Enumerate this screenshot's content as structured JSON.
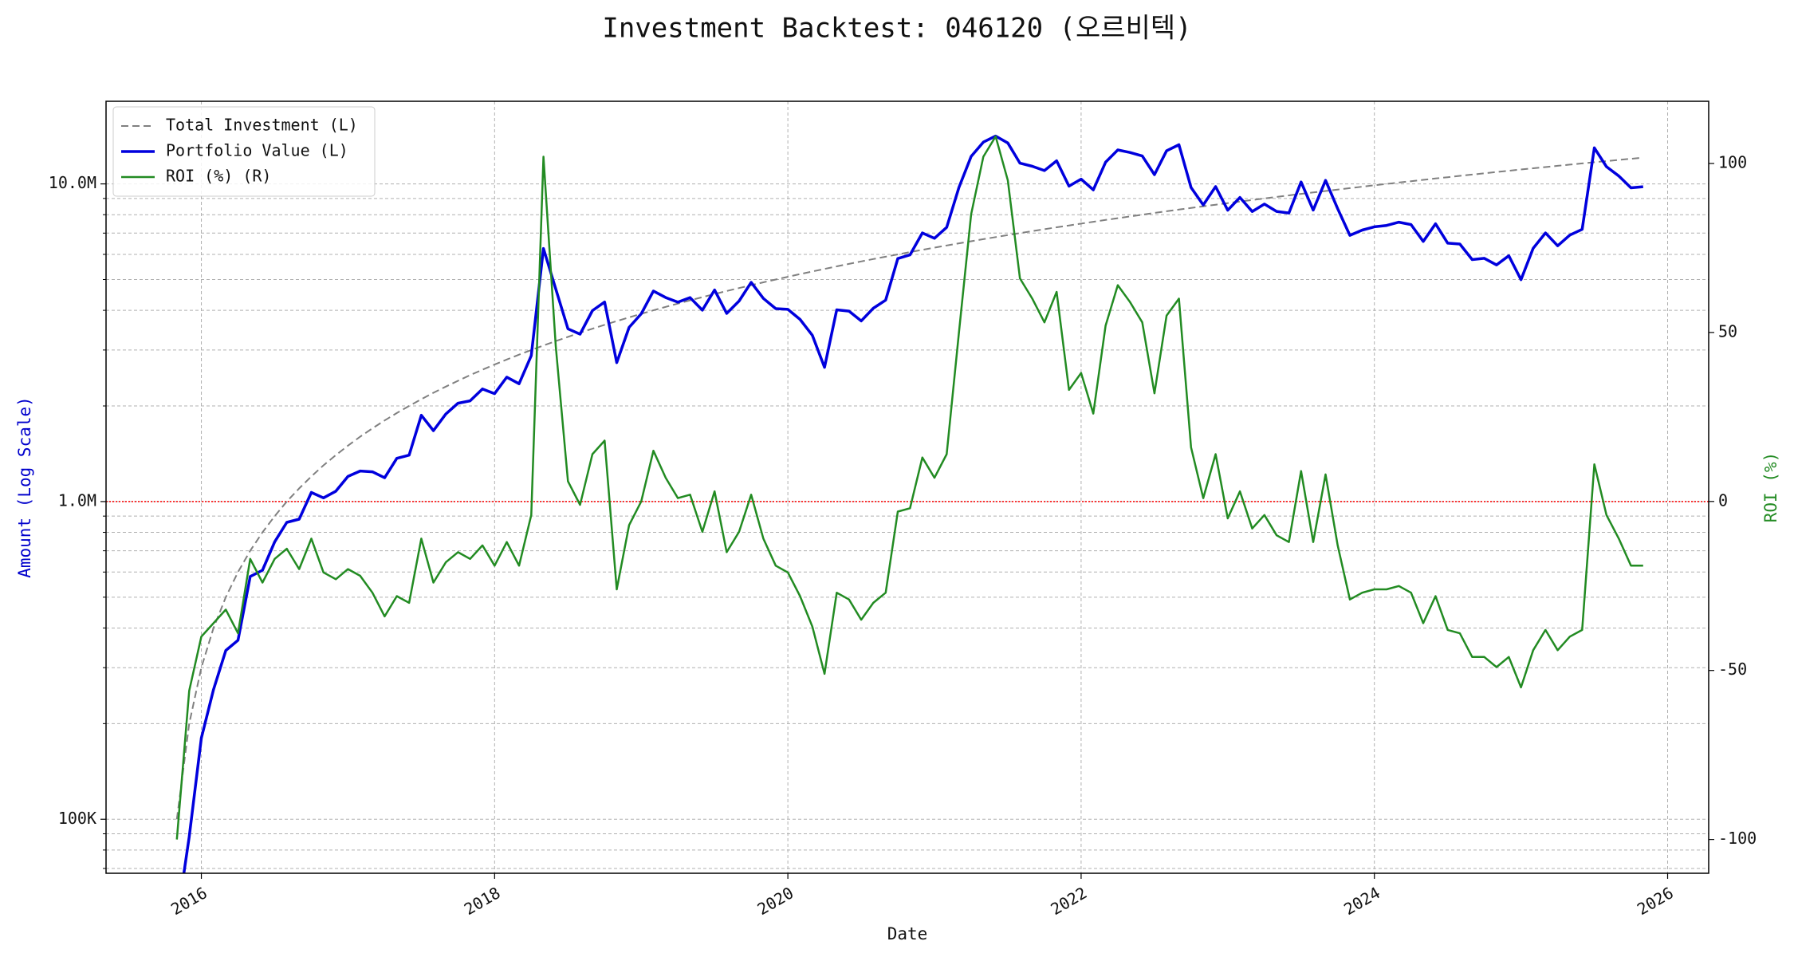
{
  "chart_data": {
    "type": "line",
    "title": "Investment Backtest: 046120 (오르비텍)",
    "xlabel": "Date",
    "ylabel": "Amount (Log Scale)",
    "y2label": "ROI (%)",
    "ylabel_color": "#0000cc",
    "y2label_color": "#228b22",
    "x": [
      2015.833,
      2015.917,
      2016.0,
      2016.083,
      2016.167,
      2016.25,
      2016.333,
      2016.417,
      2016.5,
      2016.583,
      2016.667,
      2016.75,
      2016.833,
      2016.917,
      2017.0,
      2017.083,
      2017.167,
      2017.25,
      2017.333,
      2017.417,
      2017.5,
      2017.583,
      2017.667,
      2017.75,
      2017.833,
      2017.917,
      2018.0,
      2018.083,
      2018.167,
      2018.25,
      2018.333,
      2018.417,
      2018.5,
      2018.583,
      2018.667,
      2018.75,
      2018.833,
      2018.917,
      2019.0,
      2019.083,
      2019.167,
      2019.25,
      2019.333,
      2019.417,
      2019.5,
      2019.583,
      2019.667,
      2019.75,
      2019.833,
      2019.917,
      2020.0,
      2020.083,
      2020.167,
      2020.25,
      2020.333,
      2020.417,
      2020.5,
      2020.583,
      2020.667,
      2020.75,
      2020.833,
      2020.917,
      2021.0,
      2021.083,
      2021.167,
      2021.25,
      2021.333,
      2021.417,
      2021.5,
      2021.583,
      2021.667,
      2021.75,
      2021.833,
      2021.917,
      2022.0,
      2022.083,
      2022.167,
      2022.25,
      2022.333,
      2022.417,
      2022.5,
      2022.583,
      2022.667,
      2022.75,
      2022.833,
      2022.917,
      2023.0,
      2023.083,
      2023.167,
      2023.25,
      2023.333,
      2023.417,
      2023.5,
      2023.583,
      2023.667,
      2023.75,
      2023.833,
      2023.917,
      2024.0,
      2024.083,
      2024.167,
      2024.25,
      2024.333,
      2024.417,
      2024.5,
      2024.583,
      2024.667,
      2024.75,
      2024.833,
      2024.917,
      2025.0,
      2025.083,
      2025.167,
      2025.25,
      2025.333,
      2025.417,
      2025.5,
      2025.583,
      2025.667,
      2025.75,
      2025.833
    ],
    "series": [
      {
        "name": "Total Investment (L)",
        "color": "#808080",
        "dash": true,
        "width": 2,
        "axis": "y",
        "values": [
          100000,
          200000,
          300000,
          400000,
          500000,
          600000,
          700000,
          800000,
          900000,
          1000000,
          1100000,
          1200000,
          1300000,
          1400000,
          1500000,
          1600000,
          1700000,
          1800000,
          1900000,
          2000000,
          2100000,
          2200000,
          2300000,
          2400000,
          2500000,
          2600000,
          2700000,
          2800000,
          2900000,
          3000000,
          3100000,
          3200000,
          3300000,
          3400000,
          3500000,
          3600000,
          3700000,
          3800000,
          3900000,
          4000000,
          4100000,
          4200000,
          4300000,
          4400000,
          4500000,
          4600000,
          4700000,
          4800000,
          4900000,
          5000000,
          5100000,
          5200000,
          5300000,
          5400000,
          5500000,
          5600000,
          5700000,
          5800000,
          5900000,
          6000000,
          6100000,
          6200000,
          6300000,
          6400000,
          6500000,
          6600000,
          6700000,
          6800000,
          6900000,
          7000000,
          7100000,
          7200000,
          7300000,
          7400000,
          7500000,
          7600000,
          7700000,
          7800000,
          7900000,
          8000000,
          8100000,
          8200000,
          8300000,
          8400000,
          8500000,
          8600000,
          8700000,
          8800000,
          8900000,
          9000000,
          9100000,
          9200000,
          9300000,
          9400000,
          9500000,
          9600000,
          9700000,
          9800000,
          9900000,
          10000000,
          10100000,
          10200000,
          10300000,
          10400000,
          10500000,
          10600000,
          10700000,
          10800000,
          10900000,
          11000000,
          11100000,
          11200000,
          11300000,
          11400000,
          11500000,
          11600000,
          11700000,
          11800000,
          11900000,
          12000000,
          12100000
        ]
      },
      {
        "name": "Portfolio Value (L)",
        "color": "#0000dd",
        "dash": false,
        "width": 3.5,
        "axis": "y",
        "values": [
          0,
          88000,
          180000,
          256000,
          340000,
          366000,
          581000,
          608000,
          747000,
          860000,
          880000,
          1068000,
          1027000,
          1078000,
          1200000,
          1248000,
          1241000,
          1188000,
          1368000,
          1400000,
          1869000,
          1672000,
          1886000,
          2040000,
          2075000,
          2262000,
          2187000,
          2464000,
          2349000,
          2880000,
          6262000,
          4672000,
          3498000,
          3366000,
          3990000,
          4248000,
          2738000,
          3534000,
          3900000,
          4600000,
          4387000,
          4242000,
          4386000,
          4004000,
          4635000,
          3910000,
          4277000,
          4896000,
          4361000,
          4050000,
          4029000,
          3744000,
          3339000,
          2646000,
          4015000,
          3976000,
          3705000,
          4060000,
          4307000,
          5820000,
          5978000,
          7006000,
          6741000,
          7296000,
          9750000,
          12210000,
          13534000,
          14144000,
          13455000,
          11620000,
          11360000,
          11016000,
          11826000,
          9842000,
          10350000,
          9576000,
          11704000,
          12792000,
          12561000,
          12240000,
          10692000,
          12710000,
          13280000,
          9744000,
          8585000,
          9804000,
          8265000,
          9064000,
          8188000,
          8640000,
          8190000,
          8096000,
          10137000,
          8272000,
          10260000,
          8352000,
          6887000,
          7154000,
          7326000,
          7400000,
          7575000,
          7446000,
          6592000,
          7488000,
          6510000,
          6466000,
          5778000,
          5832000,
          5559000,
          5940000,
          4995000,
          6272000,
          7006000,
          6384000,
          6900000,
          7192000,
          12987000,
          11328000,
          10591000,
          9720000,
          9801000
        ]
      },
      {
        "name": "ROI (%) (R)",
        "color": "#228b22",
        "dash": false,
        "width": 2.5,
        "axis": "y2",
        "values": [
          -100,
          -56,
          -40,
          -36,
          -32,
          -39,
          -17,
          -24,
          -17,
          -14,
          -20,
          -11,
          -21,
          -23,
          -20,
          -22,
          -27,
          -34,
          -28,
          -30,
          -11,
          -24,
          -18,
          -15,
          -17,
          -13,
          -19,
          -12,
          -19,
          -4,
          102,
          46,
          6,
          -1,
          14,
          18,
          -26,
          -7,
          0,
          15,
          7,
          1,
          2,
          -9,
          3,
          -15,
          -9,
          2,
          -11,
          -19,
          -21,
          -28,
          -37,
          -51,
          -27,
          -29,
          -35,
          -30,
          -27,
          -3,
          -2,
          13,
          7,
          14,
          50,
          85,
          102,
          108,
          95,
          66,
          60,
          53,
          62,
          33,
          38,
          26,
          52,
          64,
          59,
          53,
          32,
          55,
          60,
          16,
          1,
          14,
          -5,
          3,
          -8,
          -4,
          -10,
          -12,
          9,
          -12,
          8,
          -13,
          -29,
          -27,
          -26,
          -26,
          -25,
          -27,
          -36,
          -28,
          -38,
          -39,
          -46,
          -46,
          -49,
          -46,
          -55,
          -44,
          -38,
          -44,
          -40,
          -38,
          11,
          -4,
          -11,
          -19,
          -19
        ]
      }
    ],
    "xlim": [
      2015.35,
      2026.28
    ],
    "xticks": [
      2016,
      2018,
      2020,
      2022,
      2024,
      2026
    ],
    "ylog": true,
    "ylim": [
      67600,
      18200000
    ],
    "yticks": [
      {
        "value": 100000,
        "label": "100K"
      },
      {
        "value": 1000000,
        "label": "1.0M"
      },
      {
        "value": 10000000,
        "label": "10.0M"
      }
    ],
    "yminorticks": [
      70000,
      80000,
      90000,
      200000,
      300000,
      400000,
      500000,
      600000,
      700000,
      800000,
      900000,
      2000000,
      3000000,
      4000000,
      5000000,
      6000000,
      7000000,
      8000000,
      9000000
    ],
    "y2lim": [
      -110,
      118.4
    ],
    "y2ticks": [
      -100,
      -50,
      0,
      50,
      100
    ],
    "reference_line": {
      "value": 1000000,
      "color": "#ff0000"
    },
    "grid": true,
    "legend": "upper left"
  }
}
